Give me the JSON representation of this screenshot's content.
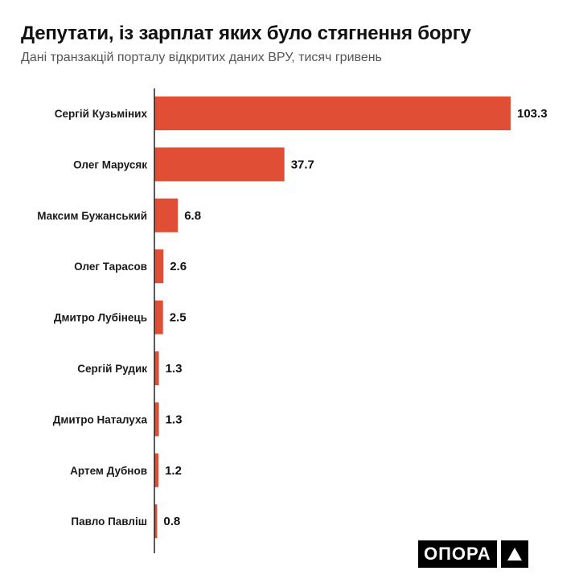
{
  "header": {
    "title": "Депутати, із зарплат яких було стягнення боргу",
    "subtitle": "Дані транзакцій порталу відкритих даних ВРУ, тисяч гривень"
  },
  "logo": {
    "text": "ОПОРА",
    "icon": "triangle-icon"
  },
  "colors": {
    "bar": "#e04e35",
    "axis": "#222222"
  },
  "chart_data": {
    "type": "bar",
    "orientation": "horizontal",
    "title": "Депутати, із зарплат яких було стягнення боргу",
    "subtitle": "Дані транзакцій порталу відкритих даних ВРУ, тисяч гривень",
    "categories": [
      "Сергій Кузьміних",
      "Олег Марусяк",
      "Максим Бужанський",
      "Олег Тарасов",
      "Дмитро Лубінець",
      "Сергій Рудик",
      "Дмитро Наталуха",
      "Артем Дубнов",
      "Павло Павліш"
    ],
    "values": [
      103.3,
      37.7,
      6.8,
      2.6,
      2.5,
      1.3,
      1.3,
      1.2,
      0.8
    ],
    "value_labels": [
      "103.3",
      "37.7",
      "6.8",
      "2.6",
      "2.5",
      "1.3",
      "1.3",
      "1.2",
      "0.8"
    ],
    "xlim": [
      0,
      103.3
    ],
    "grid": false,
    "legend": "none"
  }
}
